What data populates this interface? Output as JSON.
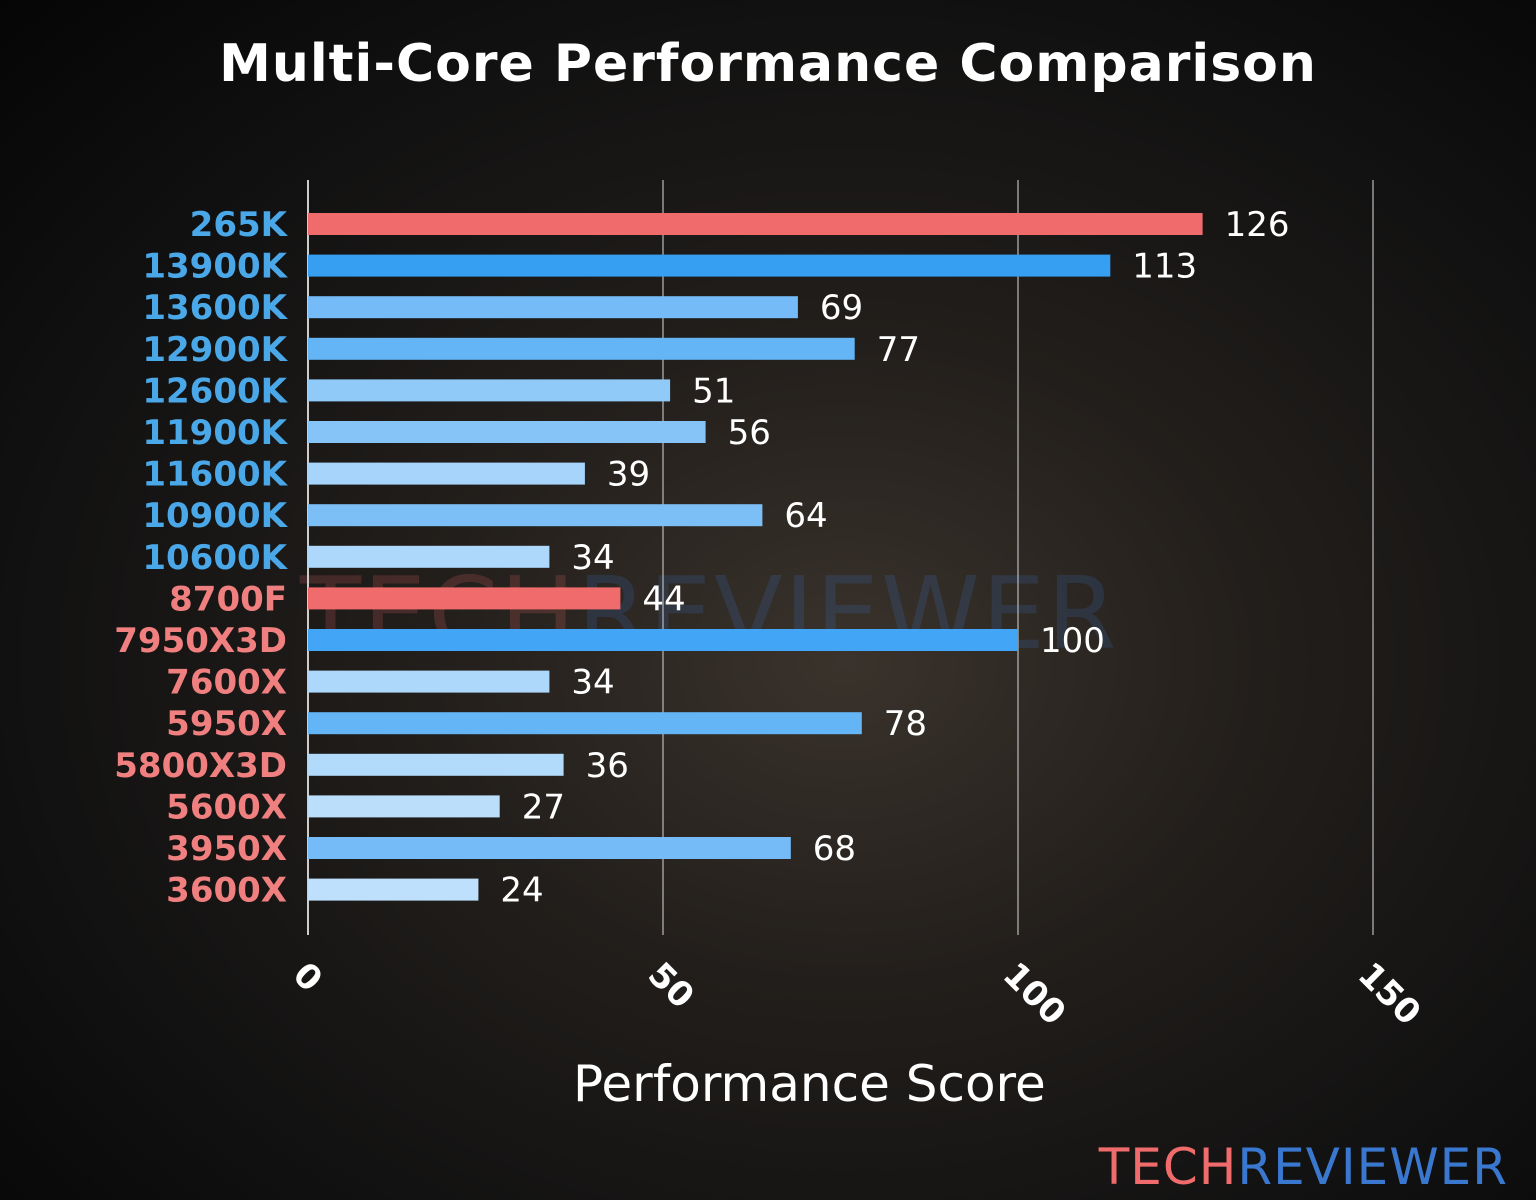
{
  "chart_data": {
    "type": "bar",
    "orientation": "horizontal",
    "title": "Multi-Core Performance Comparison",
    "xlabel": "Performance Score",
    "ylabel": "",
    "xlim": [
      0,
      150
    ],
    "xticks": [
      0,
      50,
      100,
      150
    ],
    "grid": "vertical",
    "categories": [
      "265K",
      "13900K",
      "13600K",
      "12900K",
      "12600K",
      "11900K",
      "11600K",
      "10900K",
      "10600K",
      "8700F",
      "7950X3D",
      "7600X",
      "5950X",
      "5800X3D",
      "5600X",
      "3950X",
      "3600X"
    ],
    "values": [
      126,
      113,
      69,
      77,
      51,
      56,
      39,
      64,
      34,
      44,
      100,
      34,
      78,
      36,
      27,
      68,
      24
    ],
    "bar_colors": [
      "#f06c6c",
      "#379ff2",
      "#74bbf7",
      "#64b5f6",
      "#90caf9",
      "#86c4f8",
      "#a6d4fa",
      "#7cbff7",
      "#aed8fb",
      "#f06c6c",
      "#42a5f5",
      "#aed8fb",
      "#64b5f6",
      "#b2dafb",
      "#bbdefb",
      "#74bbf7",
      "#bfe0fc"
    ],
    "label_colors": [
      "#4aa8e8",
      "#4aa8e8",
      "#4aa8e8",
      "#4aa8e8",
      "#4aa8e8",
      "#4aa8e8",
      "#4aa8e8",
      "#4aa8e8",
      "#4aa8e8",
      "#f08080",
      "#f08080",
      "#f08080",
      "#f08080",
      "#f08080",
      "#f08080",
      "#f08080",
      "#f08080"
    ]
  },
  "watermark": {
    "part1": "TECH",
    "part2": "REVIEWER"
  },
  "logo": {
    "part1": "TECH",
    "part2": "REVIEWER",
    "color1": "#f06c6c",
    "color2": "#3a78d0"
  }
}
